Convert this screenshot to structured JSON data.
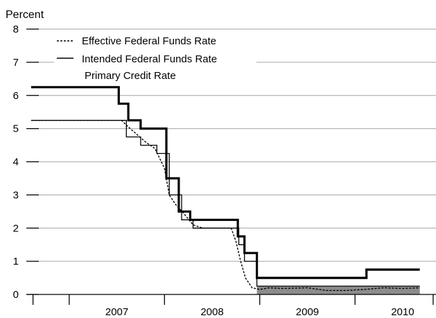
{
  "chart_data": {
    "type": "line",
    "title": "",
    "ylabel": "Percent",
    "xlabel": "",
    "ylim": [
      0,
      8
    ],
    "xlim": [
      2006.55,
      2010.85
    ],
    "yticks": [
      0,
      1,
      2,
      3,
      4,
      5,
      6,
      7,
      8
    ],
    "ytick_labels": [
      "0",
      "1",
      "2",
      "3",
      "4",
      "5",
      "6",
      "7",
      "8"
    ],
    "x_boundaries": [
      2007,
      2008,
      2009,
      2010
    ],
    "x_labels": [
      {
        "label": "2007",
        "x": 2007.5
      },
      {
        "label": "2008",
        "x": 2008.5
      },
      {
        "label": "2009",
        "x": 2009.5
      },
      {
        "label": "2010",
        "x": 2010.5
      }
    ],
    "grid": "horizontal",
    "legend_position": "top-left",
    "legend": [
      "Effective Federal Funds Rate",
      "Intended Federal Funds Rate",
      "Primary Credit Rate"
    ],
    "series": [
      {
        "name": "Effective Federal Funds Rate",
        "style": "dotted",
        "points": [
          [
            2006.6,
            5.25
          ],
          [
            2007.55,
            5.25
          ],
          [
            2007.62,
            5.05
          ],
          [
            2007.7,
            4.85
          ],
          [
            2007.8,
            4.6
          ],
          [
            2007.9,
            4.4
          ],
          [
            2008.0,
            3.8
          ],
          [
            2008.05,
            3.0
          ],
          [
            2008.12,
            2.7
          ],
          [
            2008.2,
            2.45
          ],
          [
            2008.3,
            2.1
          ],
          [
            2008.4,
            2.0
          ],
          [
            2008.7,
            2.0
          ],
          [
            2008.75,
            1.6
          ],
          [
            2008.8,
            1.0
          ],
          [
            2008.85,
            0.5
          ],
          [
            2008.92,
            0.2
          ],
          [
            2009.0,
            0.15
          ],
          [
            2009.1,
            0.2
          ],
          [
            2009.25,
            0.18
          ],
          [
            2009.5,
            0.2
          ],
          [
            2009.7,
            0.12
          ],
          [
            2009.9,
            0.12
          ],
          [
            2010.1,
            0.15
          ],
          [
            2010.3,
            0.2
          ],
          [
            2010.5,
            0.18
          ],
          [
            2010.68,
            0.2
          ]
        ]
      },
      {
        "name": "Intended Federal Funds Rate",
        "style": "thin-step",
        "points": [
          [
            2006.6,
            5.25
          ],
          [
            2007.6,
            5.25
          ],
          [
            2007.6,
            4.75
          ],
          [
            2007.75,
            4.75
          ],
          [
            2007.75,
            4.5
          ],
          [
            2007.92,
            4.5
          ],
          [
            2007.92,
            4.25
          ],
          [
            2008.05,
            4.25
          ],
          [
            2008.05,
            3.0
          ],
          [
            2008.18,
            3.0
          ],
          [
            2008.18,
            2.25
          ],
          [
            2008.3,
            2.25
          ],
          [
            2008.3,
            2.0
          ],
          [
            2008.78,
            2.0
          ],
          [
            2008.78,
            1.5
          ],
          [
            2008.84,
            1.5
          ],
          [
            2008.84,
            1.0
          ],
          [
            2008.97,
            1.0
          ],
          [
            2008.97,
            0.25
          ],
          [
            2010.68,
            0.25
          ]
        ]
      },
      {
        "name": "Primary Credit Rate",
        "style": "thick-step",
        "points": [
          [
            2006.6,
            6.25
          ],
          [
            2007.52,
            6.25
          ],
          [
            2007.52,
            5.75
          ],
          [
            2007.62,
            5.75
          ],
          [
            2007.62,
            5.25
          ],
          [
            2007.75,
            5.25
          ],
          [
            2007.75,
            5.0
          ],
          [
            2008.02,
            5.0
          ],
          [
            2008.02,
            3.5
          ],
          [
            2008.15,
            3.5
          ],
          [
            2008.15,
            2.5
          ],
          [
            2008.27,
            2.5
          ],
          [
            2008.27,
            2.25
          ],
          [
            2008.77,
            2.25
          ],
          [
            2008.77,
            1.75
          ],
          [
            2008.84,
            1.75
          ],
          [
            2008.84,
            1.25
          ],
          [
            2008.97,
            1.25
          ],
          [
            2008.97,
            0.5
          ],
          [
            2010.12,
            0.5
          ],
          [
            2010.12,
            0.75
          ],
          [
            2010.68,
            0.75
          ]
        ]
      },
      {
        "name": "target range band",
        "style": "band",
        "x": [
          2008.97,
          2010.68
        ],
        "y": [
          0,
          0.25
        ],
        "color": "#8c8c8c"
      }
    ]
  }
}
